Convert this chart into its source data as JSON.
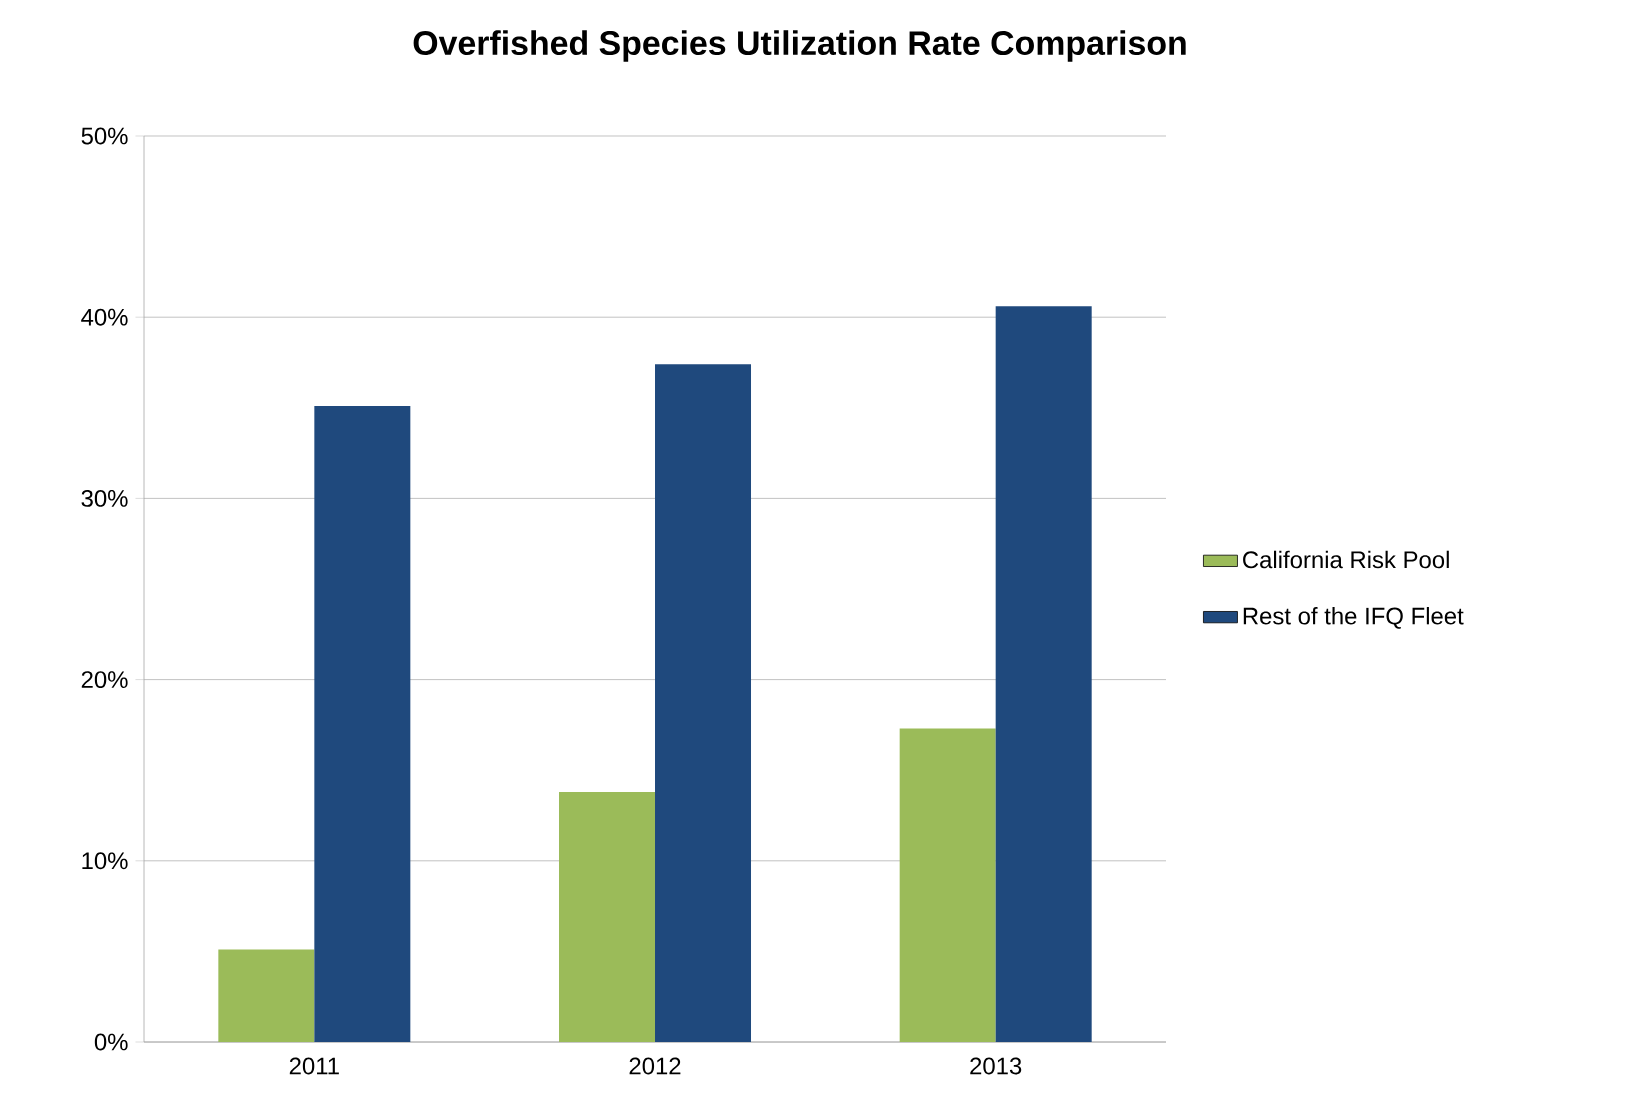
{
  "chart_data": {
    "type": "bar",
    "title": "Overfished Species Utilization Rate Comparison",
    "categories": [
      "2011",
      "2012",
      "2013"
    ],
    "series": [
      {
        "name": "California Risk Pool",
        "color": "#9bbb59",
        "values": [
          5.1,
          13.8,
          17.3
        ]
      },
      {
        "name": "Rest of the IFQ Fleet",
        "color": "#1f497d",
        "values": [
          35.1,
          37.4,
          40.6
        ]
      }
    ],
    "ylim": [
      0,
      50
    ],
    "yticks": [
      {
        "value": 0,
        "label": "0%"
      },
      {
        "value": 10,
        "label": "10%"
      },
      {
        "value": 20,
        "label": "20%"
      },
      {
        "value": 30,
        "label": "30%"
      },
      {
        "value": 40,
        "label": "40%"
      },
      {
        "value": 50,
        "label": "50%"
      }
    ],
    "grid": "y",
    "legend": "right"
  }
}
